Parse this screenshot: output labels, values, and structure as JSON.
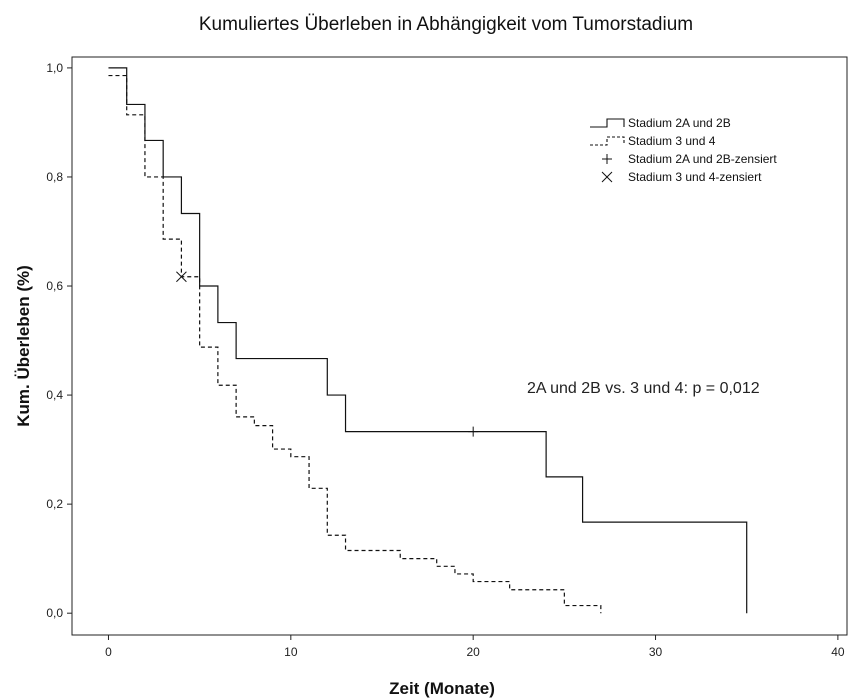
{
  "chart_data": {
    "type": "line",
    "title": "Kumuliertes Überleben in Abhängigkeit vom Tumorstadium",
    "xlabel": "Zeit (Monate)",
    "ylabel": "Kum. Überleben (%)",
    "xlim": [
      -2,
      40.5
    ],
    "ylim": [
      -0.04,
      1.02
    ],
    "x_ticks": [
      0,
      10,
      20,
      30,
      40
    ],
    "x_tick_labels": [
      "0",
      "10",
      "20",
      "30",
      "40"
    ],
    "y_ticks": [
      0.0,
      0.2,
      0.4,
      0.6,
      0.8,
      1.0
    ],
    "y_tick_labels": [
      "0,0",
      "0,2",
      "0,4",
      "0,6",
      "0,8",
      "1,0"
    ],
    "grid": false,
    "legend_position": "top-right",
    "legend": [
      {
        "label": "Stadium 2A und 2B",
        "kind": "solid-step"
      },
      {
        "label": "Stadium 3 und 4",
        "kind": "dashed-step"
      },
      {
        "label": "Stadium 2A und 2B-zensiert",
        "kind": "plus-marker"
      },
      {
        "label": "Stadium 3 und 4-zensiert",
        "kind": "x-marker"
      }
    ],
    "annotation": "2A und 2B vs. 3 und 4: p = 0,012",
    "series": [
      {
        "name": "Stadium 2A und 2B",
        "style": "solid",
        "x": [
          0,
          1,
          2,
          3,
          4,
          5,
          6,
          7,
          12,
          13,
          24,
          26,
          35,
          35
        ],
        "y": [
          1.0,
          0.933,
          0.867,
          0.8,
          0.733,
          0.6,
          0.533,
          0.467,
          0.4,
          0.333,
          0.25,
          0.167,
          0.167,
          0.0
        ],
        "censored": [
          {
            "x": 20,
            "y": 0.333
          }
        ]
      },
      {
        "name": "Stadium 3 und 4",
        "style": "dashed",
        "x": [
          0,
          1,
          2,
          3,
          4,
          5,
          6,
          7,
          8,
          9,
          10,
          11,
          12,
          13,
          14,
          16,
          18,
          19,
          20,
          22,
          25,
          27,
          27
        ],
        "y": [
          0.986,
          0.914,
          0.8,
          0.686,
          0.617,
          0.488,
          0.418,
          0.36,
          0.344,
          0.301,
          0.287,
          0.229,
          0.143,
          0.115,
          0.115,
          0.1,
          0.086,
          0.072,
          0.058,
          0.043,
          0.014,
          0.014,
          0.0
        ],
        "censored": [
          {
            "x": 4,
            "y": 0.617
          }
        ]
      }
    ]
  }
}
